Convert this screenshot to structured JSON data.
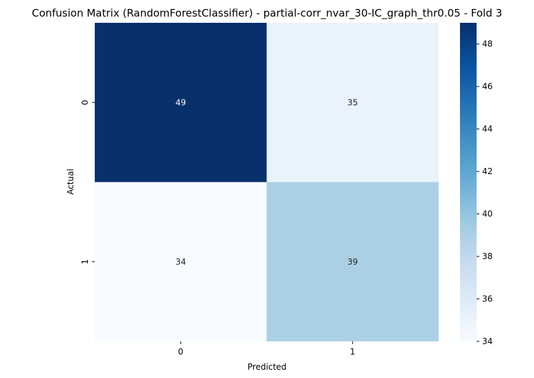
{
  "chart_data": {
    "type": "heatmap",
    "title": "Confusion Matrix (RandomForestClassifier) - partial-corr_nvar_30-IC_graph_thr0.05 - Fold 3",
    "xlabel": "Predicted",
    "ylabel": "Actual",
    "x_categories": [
      "0",
      "1"
    ],
    "y_categories": [
      "0",
      "1"
    ],
    "values": [
      [
        49,
        35
      ],
      [
        34,
        39
      ]
    ],
    "colormap": "Blues",
    "colorbar": {
      "min": 34,
      "max": 49,
      "ticks": [
        "34",
        "36",
        "38",
        "40",
        "42",
        "44",
        "46",
        "48"
      ]
    }
  }
}
